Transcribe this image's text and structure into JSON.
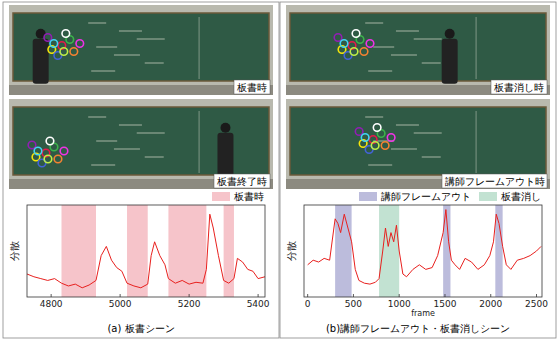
{
  "photos": [
    [
      "板書時",
      "板書終了時"
    ],
    [
      "板書消し時",
      "講師フレームアウト時"
    ]
  ],
  "chart_data": [
    {
      "type": "line",
      "title": "(a) 板書シーン",
      "y_label": "分散",
      "xlim": [
        4730,
        5420
      ],
      "xticks": [
        4800,
        5000,
        5200,
        5400
      ],
      "ylim": [
        0,
        1
      ],
      "tick_labels": "x",
      "legend": "top-right",
      "x": [
        4730,
        4750,
        4770,
        4790,
        4810,
        4830,
        4850,
        4870,
        4890,
        4910,
        4930,
        4945,
        4960,
        4975,
        4990,
        5005,
        5020,
        5040,
        5060,
        5080,
        5090,
        5100,
        5115,
        5130,
        5140,
        5160,
        5180,
        5200,
        5220,
        5240,
        5250,
        5260,
        5270,
        5285,
        5300,
        5315,
        5330,
        5340,
        5355,
        5370,
        5385,
        5400,
        5420
      ],
      "series": [
        {
          "color": "#e8201e",
          "values": [
            0.25,
            0.22,
            0.2,
            0.18,
            0.2,
            0.15,
            0.12,
            0.14,
            0.1,
            0.13,
            0.18,
            0.45,
            0.55,
            0.4,
            0.32,
            0.28,
            0.15,
            0.12,
            0.1,
            0.14,
            0.45,
            0.6,
            0.45,
            0.35,
            0.2,
            0.15,
            0.18,
            0.14,
            0.16,
            0.15,
            0.3,
            0.9,
            0.75,
            0.45,
            0.18,
            0.15,
            0.2,
            0.42,
            0.38,
            0.3,
            0.28,
            0.2,
            0.22
          ]
        }
      ],
      "regions": [
        {
          "name": "板書時",
          "color": "#f6c4ca",
          "spans": [
            [
              4830,
              4930
            ],
            [
              5020,
              5080
            ],
            [
              5140,
              5250
            ],
            [
              5300,
              5330
            ]
          ]
        }
      ]
    },
    {
      "type": "line",
      "title": "(b)講師フレームアウト・板書消しシーン",
      "x_label": "frame",
      "y_label": "分散",
      "xlim": [
        -40,
        2560
      ],
      "xticks": [
        0,
        500,
        1000,
        1500,
        2000,
        2500
      ],
      "ylim": [
        0,
        1
      ],
      "tick_labels": "x",
      "legend": "top-right",
      "x": [
        0,
        60,
        120,
        180,
        240,
        300,
        330,
        360,
        400,
        440,
        480,
        520,
        560,
        620,
        680,
        740,
        780,
        820,
        850,
        880,
        910,
        940,
        970,
        1000,
        1040,
        1080,
        1150,
        1220,
        1290,
        1360,
        1420,
        1480,
        1510,
        1540,
        1570,
        1610,
        1660,
        1720,
        1790,
        1860,
        1930,
        1990,
        2030,
        2060,
        2090,
        2130,
        2170,
        2220,
        2290,
        2360,
        2430,
        2500,
        2550
      ],
      "series": [
        {
          "color": "#e8201e",
          "values": [
            0.35,
            0.4,
            0.38,
            0.42,
            0.4,
            0.85,
            0.8,
            0.7,
            0.9,
            0.75,
            0.6,
            0.3,
            0.18,
            0.15,
            0.14,
            0.16,
            0.2,
            0.5,
            0.75,
            0.55,
            0.7,
            0.6,
            0.78,
            0.5,
            0.25,
            0.22,
            0.3,
            0.35,
            0.3,
            0.32,
            0.45,
            0.7,
            0.95,
            0.6,
            0.4,
            0.35,
            0.3,
            0.42,
            0.38,
            0.3,
            0.35,
            0.45,
            0.6,
            0.9,
            0.8,
            0.55,
            0.35,
            0.3,
            0.4,
            0.42,
            0.45,
            0.5,
            0.55
          ]
        }
      ],
      "regions": [
        {
          "name": "講師フレームアウト",
          "color": "#bcbcdc",
          "spans": [
            [
              300,
              480
            ],
            [
              1480,
              1560
            ],
            [
              2050,
              2130
            ]
          ]
        },
        {
          "name": "板書消し",
          "color": "#c2e2d2",
          "spans": [
            [
              780,
              1000
            ]
          ]
        }
      ]
    }
  ]
}
